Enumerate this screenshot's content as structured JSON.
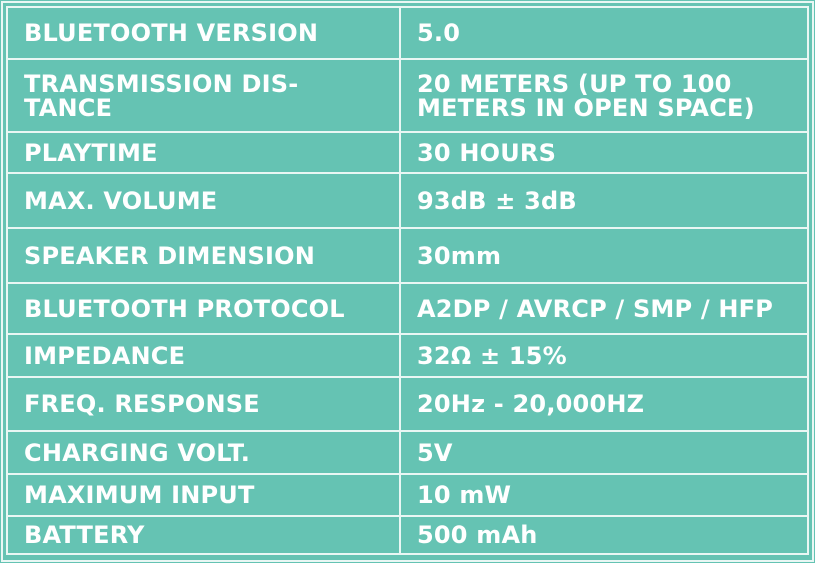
{
  "colors": {
    "background": "#65c3b3",
    "lines": "#e9f7f4",
    "text": "#ffffff"
  },
  "rows": [
    {
      "label": "BLUETOOTH VERSION",
      "value": "5.0"
    },
    {
      "label": "TRANSMISSION DIS-\nTANCE",
      "value": "20 METERS (UP TO 100\nMETERS IN OPEN SPACE)"
    },
    {
      "label": "PLAYTIME",
      "value": "30 HOURS"
    },
    {
      "label": "MAX. VOLUME",
      "value": "93dB ± 3dB"
    },
    {
      "label": "SPEAKER DIMENSION",
      "value": "30mm"
    },
    {
      "label": "BLUETOOTH PROTOCOL",
      "value": "A2DP / AVRCP / SMP / HFP"
    },
    {
      "label": "IMPEDANCE",
      "value": "32Ω ± 15%"
    },
    {
      "label": "FREQ. RESPONSE",
      "value": "20Hz - 20,000HZ"
    },
    {
      "label": "CHARGING VOLT.",
      "value": "5V"
    },
    {
      "label": "MAXIMUM INPUT",
      "value": "10 mW"
    },
    {
      "label": "BATTERY",
      "value": "500 mAh"
    }
  ]
}
